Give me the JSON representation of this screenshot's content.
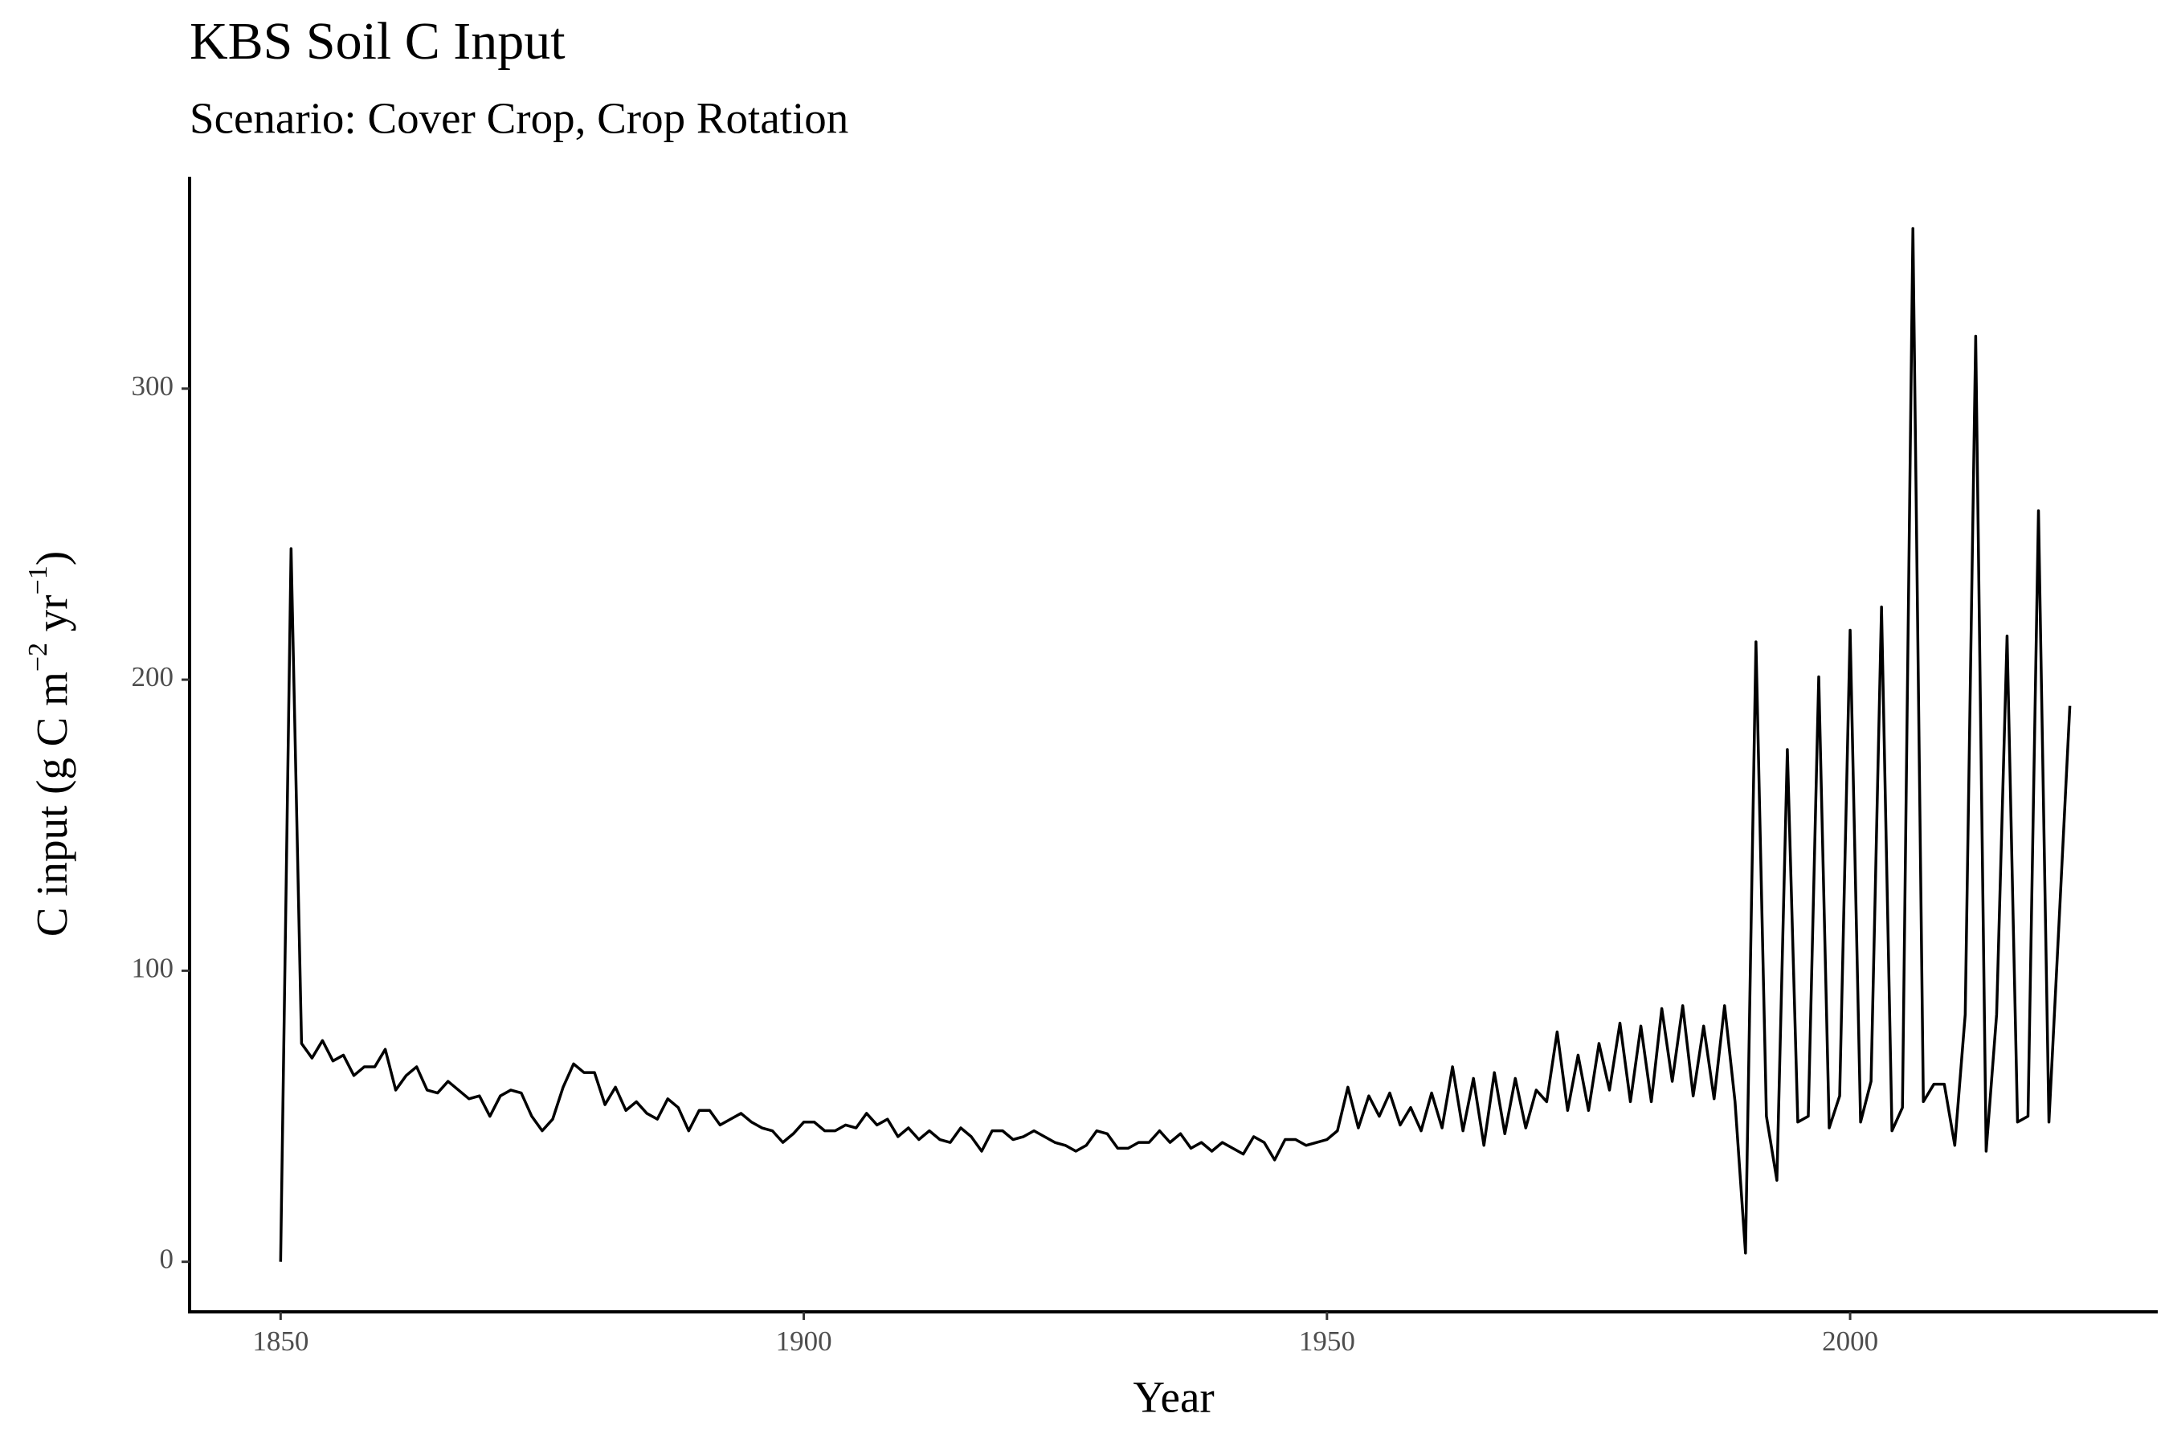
{
  "chart_data": {
    "type": "line",
    "title": "KBS Soil C Input",
    "subtitle": "Scenario: Cover Crop, Crop Rotation",
    "x_label": "Year",
    "y_label": [
      "C input (g C m",
      "−2",
      " yr",
      "−1",
      ")"
    ],
    "color": "#000000",
    "x": [
      1850,
      1851,
      1852,
      1853,
      1854,
      1855,
      1856,
      1857,
      1858,
      1859,
      1860,
      1861,
      1862,
      1863,
      1864,
      1865,
      1866,
      1867,
      1868,
      1869,
      1870,
      1871,
      1872,
      1873,
      1874,
      1875,
      1876,
      1877,
      1878,
      1879,
      1880,
      1881,
      1882,
      1883,
      1884,
      1885,
      1886,
      1887,
      1888,
      1889,
      1890,
      1891,
      1892,
      1893,
      1894,
      1895,
      1896,
      1897,
      1898,
      1899,
      1900,
      1901,
      1902,
      1903,
      1904,
      1905,
      1906,
      1907,
      1908,
      1909,
      1910,
      1911,
      1912,
      1913,
      1914,
      1915,
      1916,
      1917,
      1918,
      1919,
      1920,
      1921,
      1922,
      1923,
      1924,
      1925,
      1926,
      1927,
      1928,
      1929,
      1930,
      1931,
      1932,
      1933,
      1934,
      1935,
      1936,
      1937,
      1938,
      1939,
      1940,
      1941,
      1942,
      1943,
      1944,
      1945,
      1946,
      1947,
      1948,
      1949,
      1950,
      1951,
      1952,
      1953,
      1954,
      1955,
      1956,
      1957,
      1958,
      1959,
      1960,
      1961,
      1962,
      1963,
      1964,
      1965,
      1966,
      1967,
      1968,
      1969,
      1970,
      1971,
      1972,
      1973,
      1974,
      1975,
      1976,
      1977,
      1978,
      1979,
      1980,
      1981,
      1982,
      1983,
      1984,
      1985,
      1986,
      1987,
      1988,
      1989,
      1990,
      1991,
      1992,
      1993,
      1994,
      1995,
      1996,
      1997,
      1998,
      1999,
      2000,
      2001,
      2002,
      2003,
      2004,
      2005,
      2006,
      2007,
      2008,
      2009,
      2010,
      2011,
      2012,
      2013,
      2014,
      2015,
      2016,
      2017,
      2018,
      2019,
      2020,
      2021
    ],
    "values": [
      0,
      245,
      75,
      70,
      76,
      69,
      71,
      64,
      67,
      67,
      73,
      59,
      64,
      67,
      59,
      58,
      62,
      59,
      56,
      57,
      50,
      57,
      59,
      58,
      50,
      45,
      49,
      60,
      68,
      65,
      65,
      54,
      60,
      52,
      55,
      51,
      49,
      56,
      53,
      45,
      52,
      52,
      47,
      49,
      51,
      48,
      46,
      45,
      41,
      44,
      48,
      48,
      45,
      45,
      47,
      46,
      51,
      47,
      49,
      43,
      46,
      42,
      45,
      42,
      41,
      46,
      43,
      38,
      45,
      45,
      42,
      43,
      45,
      43,
      41,
      40,
      38,
      40,
      45,
      44,
      39,
      39,
      41,
      41,
      45,
      41,
      44,
      39,
      41,
      38,
      41,
      39,
      37,
      43,
      41,
      35,
      42,
      42,
      40,
      41,
      42,
      45,
      60,
      46,
      57,
      50,
      58,
      47,
      53,
      45,
      58,
      46,
      67,
      45,
      63,
      40,
      65,
      44,
      63,
      46,
      59,
      55,
      79,
      52,
      71,
      52,
      75,
      59,
      82,
      55,
      81,
      55,
      87,
      62,
      88,
      57,
      81,
      56,
      88,
      55,
      3,
      213,
      50,
      28,
      176,
      48,
      50,
      201,
      46,
      57,
      217,
      48,
      62,
      225,
      45,
      53,
      355,
      55,
      61,
      61,
      40,
      85,
      318,
      38,
      85,
      215,
      48,
      50,
      258,
      48,
      119,
      191
    ],
    "xlim": [
      1841.3,
      2029.4
    ],
    "ylim": [
      -17.2,
      372.8
    ],
    "xticks": [
      1850,
      1900,
      1950,
      2000
    ],
    "yticks": [
      0,
      100,
      200,
      300
    ],
    "grid": false
  }
}
